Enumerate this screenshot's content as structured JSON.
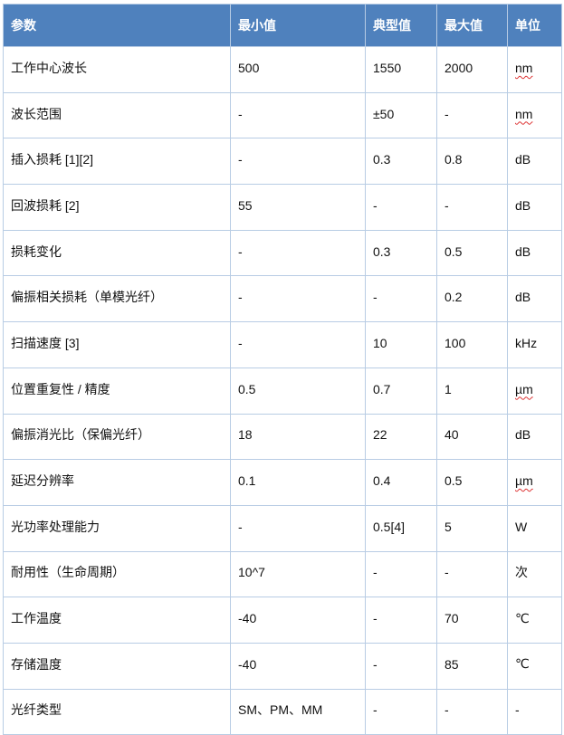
{
  "header_color": "#4f81bd",
  "headers": [
    "参数",
    "最小值",
    "典型值",
    "最大值",
    "单位"
  ],
  "rows": [
    {
      "param": "工作中心波长",
      "min": "500",
      "typ": "1550",
      "max": "2000",
      "unit": "nm",
      "spellcheck": true
    },
    {
      "param": "波长范围",
      "min": "-",
      "typ": "±50",
      "max": "-",
      "unit": "nm",
      "spellcheck": true
    },
    {
      "param": "插入损耗 [1][2]",
      "min": "-",
      "typ": "0.3",
      "max": "0.8",
      "unit": "dB"
    },
    {
      "param": "回波损耗 [2]",
      "min": "55",
      "typ": "-",
      "max": "-",
      "unit": "dB"
    },
    {
      "param": "损耗变化",
      "min": "-",
      "typ": "0.3",
      "max": "0.5",
      "unit": "dB"
    },
    {
      "param": "偏振相关损耗（单模光纤）",
      "min": "-",
      "typ": "-",
      "max": "0.2",
      "unit": "dB"
    },
    {
      "param": "扫描速度 [3]",
      "min": "-",
      "typ": "10",
      "max": "100",
      "unit": "kHz"
    },
    {
      "param": "位置重复性 / 精度",
      "min": "0.5",
      "typ": "0.7",
      "max": "1",
      "unit": "µm",
      "spellcheck": true
    },
    {
      "param": "偏振消光比（保偏光纤）",
      "min": "18",
      "typ": "22",
      "max": "40",
      "unit": "dB"
    },
    {
      "param": "延迟分辨率",
      "min": "0.1",
      "typ": "0.4",
      "max": "0.5",
      "unit": "µm",
      "spellcheck": true
    },
    {
      "param": "光功率处理能力",
      "min": "-",
      "typ": "0.5[4]",
      "max": "5",
      "unit": "W"
    },
    {
      "param": "耐用性（生命周期）",
      "min": "10^7",
      "typ": "-",
      "max": "-",
      "unit": "次"
    },
    {
      "param": "工作温度",
      "min": "-40",
      "typ": "-",
      "max": "70",
      "unit": "℃"
    },
    {
      "param": "存储温度",
      "min": "-40",
      "typ": "-",
      "max": "85",
      "unit": "℃"
    },
    {
      "param": "光纤类型",
      "min": "SM、PM、MM",
      "typ": "-",
      "max": "-",
      "unit": "-"
    }
  ]
}
